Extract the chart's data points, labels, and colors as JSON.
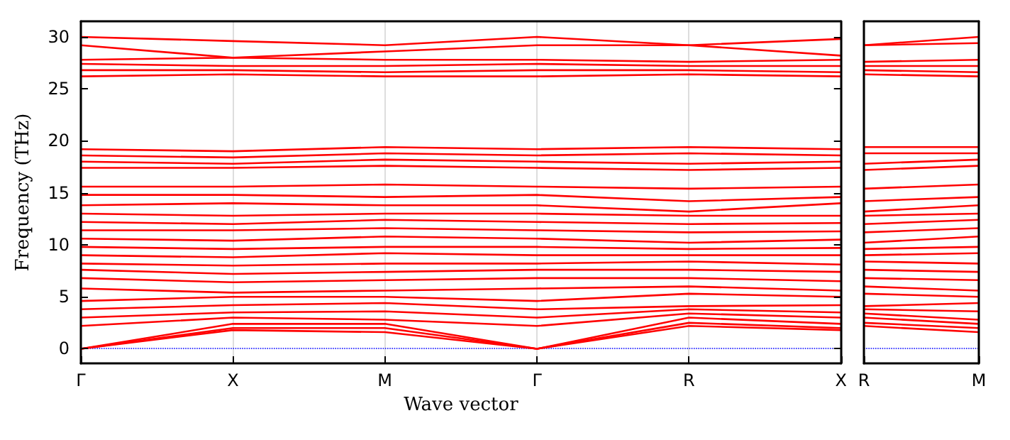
{
  "chart_data": [
    {
      "type": "line",
      "xlabel": "Wave vector",
      "ylabel": "Frequency (THz)",
      "marker": "none",
      "line_style": "solid",
      "grid": "x",
      "categories": [
        "Γ",
        "X",
        "M",
        "Γ",
        "R",
        "X"
      ],
      "ylim": [
        -1.4,
        31.5
      ],
      "yticks": [
        0,
        5,
        10,
        15,
        20,
        25,
        30
      ],
      "ref_lines": [
        {
          "axis": "y",
          "value": 0,
          "color": "#0000ff",
          "line_style": "dotted"
        }
      ],
      "series": [
        {
          "color": "#ff0000",
          "values": [
            0,
            1.8,
            1.6,
            0,
            2.2,
            1.8
          ]
        },
        {
          "color": "#ff0000",
          "values": [
            0,
            2.0,
            2.0,
            0,
            2.5,
            2.0
          ]
        },
        {
          "color": "#ff0000",
          "values": [
            0,
            2.4,
            2.4,
            0,
            3.0,
            2.4
          ]
        },
        {
          "color": "#ff0000",
          "values": [
            2.2,
            3.0,
            2.8,
            2.2,
            3.4,
            3.0
          ]
        },
        {
          "color": "#ff0000",
          "values": [
            3.0,
            3.5,
            3.6,
            3.0,
            3.8,
            3.5
          ]
        },
        {
          "color": "#ff0000",
          "values": [
            3.8,
            4.2,
            4.4,
            3.8,
            4.1,
            4.2
          ]
        },
        {
          "color": "#ff0000",
          "values": [
            4.6,
            5.0,
            5.0,
            4.6,
            5.3,
            5.0
          ]
        },
        {
          "color": "#ff0000",
          "values": [
            5.8,
            5.4,
            5.6,
            5.8,
            6.0,
            5.6
          ]
        },
        {
          "color": "#ff0000",
          "values": [
            6.8,
            6.4,
            6.6,
            6.8,
            6.8,
            6.5
          ]
        },
        {
          "color": "#ff0000",
          "values": [
            7.6,
            7.2,
            7.4,
            7.6,
            7.6,
            7.4
          ]
        },
        {
          "color": "#ff0000",
          "values": [
            8.2,
            8.0,
            8.2,
            8.2,
            8.4,
            8.1
          ]
        },
        {
          "color": "#ff0000",
          "values": [
            9.0,
            8.8,
            9.2,
            9.0,
            9.0,
            9.0
          ]
        },
        {
          "color": "#ff0000",
          "values": [
            9.8,
            9.6,
            9.8,
            9.8,
            9.6,
            9.7
          ]
        },
        {
          "color": "#ff0000",
          "values": [
            10.6,
            10.4,
            10.8,
            10.6,
            10.2,
            10.5
          ]
        },
        {
          "color": "#ff0000",
          "values": [
            11.4,
            11.4,
            11.6,
            11.4,
            11.2,
            11.3
          ]
        },
        {
          "color": "#ff0000",
          "values": [
            12.2,
            12.0,
            12.4,
            12.2,
            12.0,
            12.1
          ]
        },
        {
          "color": "#ff0000",
          "values": [
            13.0,
            12.8,
            13.0,
            13.0,
            12.8,
            12.8
          ]
        },
        {
          "color": "#ff0000",
          "values": [
            13.8,
            14.0,
            13.8,
            13.8,
            13.2,
            14.0
          ]
        },
        {
          "color": "#ff0000",
          "values": [
            14.8,
            14.8,
            14.6,
            14.8,
            14.2,
            14.6
          ]
        },
        {
          "color": "#ff0000",
          "values": [
            15.6,
            15.6,
            15.8,
            15.6,
            15.4,
            15.6
          ]
        },
        {
          "color": "#ff0000",
          "values": [
            17.4,
            17.4,
            17.6,
            17.4,
            17.2,
            17.4
          ]
        },
        {
          "color": "#ff0000",
          "values": [
            18.0,
            17.8,
            18.2,
            18.0,
            17.8,
            18.0
          ]
        },
        {
          "color": "#ff0000",
          "values": [
            18.6,
            18.4,
            18.8,
            18.6,
            18.8,
            18.6
          ]
        },
        {
          "color": "#ff0000",
          "values": [
            19.2,
            19.0,
            19.4,
            19.2,
            19.4,
            19.2
          ]
        },
        {
          "color": "#ff0000",
          "values": [
            26.2,
            26.4,
            26.2,
            26.2,
            26.4,
            26.2
          ]
        },
        {
          "color": "#ff0000",
          "values": [
            26.8,
            26.8,
            26.6,
            26.8,
            26.8,
            26.6
          ]
        },
        {
          "color": "#ff0000",
          "values": [
            27.4,
            27.2,
            27.2,
            27.4,
            27.2,
            27.2
          ]
        },
        {
          "color": "#ff0000",
          "values": [
            27.8,
            28.0,
            27.8,
            27.8,
            27.6,
            27.8
          ]
        },
        {
          "color": "#ff0000",
          "values": [
            29.2,
            28.0,
            28.6,
            29.2,
            29.2,
            28.2
          ]
        },
        {
          "color": "#ff0000",
          "values": [
            30.0,
            29.6,
            29.2,
            30.0,
            29.2,
            29.8
          ]
        }
      ]
    },
    {
      "type": "line",
      "marker": "none",
      "line_style": "solid",
      "grid": "x",
      "tick_labels": "x",
      "categories": [
        "R",
        "M"
      ],
      "ylim": [
        -1.4,
        31.5
      ],
      "ref_lines": [
        {
          "axis": "y",
          "value": 0,
          "color": "#0000ff",
          "line_style": "dotted"
        }
      ],
      "series": [
        {
          "color": "#ff0000",
          "values": [
            2.2,
            1.6
          ]
        },
        {
          "color": "#ff0000",
          "values": [
            2.5,
            2.0
          ]
        },
        {
          "color": "#ff0000",
          "values": [
            3.0,
            2.4
          ]
        },
        {
          "color": "#ff0000",
          "values": [
            3.4,
            2.8
          ]
        },
        {
          "color": "#ff0000",
          "values": [
            3.8,
            3.6
          ]
        },
        {
          "color": "#ff0000",
          "values": [
            4.1,
            4.4
          ]
        },
        {
          "color": "#ff0000",
          "values": [
            5.3,
            5.0
          ]
        },
        {
          "color": "#ff0000",
          "values": [
            6.0,
            5.6
          ]
        },
        {
          "color": "#ff0000",
          "values": [
            6.8,
            6.6
          ]
        },
        {
          "color": "#ff0000",
          "values": [
            7.6,
            7.4
          ]
        },
        {
          "color": "#ff0000",
          "values": [
            8.4,
            8.2
          ]
        },
        {
          "color": "#ff0000",
          "values": [
            9.0,
            9.2
          ]
        },
        {
          "color": "#ff0000",
          "values": [
            9.6,
            9.8
          ]
        },
        {
          "color": "#ff0000",
          "values": [
            10.2,
            10.8
          ]
        },
        {
          "color": "#ff0000",
          "values": [
            11.2,
            11.6
          ]
        },
        {
          "color": "#ff0000",
          "values": [
            12.0,
            12.4
          ]
        },
        {
          "color": "#ff0000",
          "values": [
            12.8,
            13.0
          ]
        },
        {
          "color": "#ff0000",
          "values": [
            13.2,
            13.8
          ]
        },
        {
          "color": "#ff0000",
          "values": [
            14.2,
            14.6
          ]
        },
        {
          "color": "#ff0000",
          "values": [
            15.4,
            15.8
          ]
        },
        {
          "color": "#ff0000",
          "values": [
            17.2,
            17.6
          ]
        },
        {
          "color": "#ff0000",
          "values": [
            17.8,
            18.2
          ]
        },
        {
          "color": "#ff0000",
          "values": [
            18.8,
            18.8
          ]
        },
        {
          "color": "#ff0000",
          "values": [
            19.4,
            19.4
          ]
        },
        {
          "color": "#ff0000",
          "values": [
            26.4,
            26.2
          ]
        },
        {
          "color": "#ff0000",
          "values": [
            26.8,
            26.6
          ]
        },
        {
          "color": "#ff0000",
          "values": [
            27.2,
            27.2
          ]
        },
        {
          "color": "#ff0000",
          "values": [
            27.6,
            27.8
          ]
        },
        {
          "color": "#ff0000",
          "values": [
            29.2,
            29.4
          ]
        },
        {
          "color": "#ff0000",
          "values": [
            29.2,
            30.0
          ]
        }
      ]
    }
  ]
}
